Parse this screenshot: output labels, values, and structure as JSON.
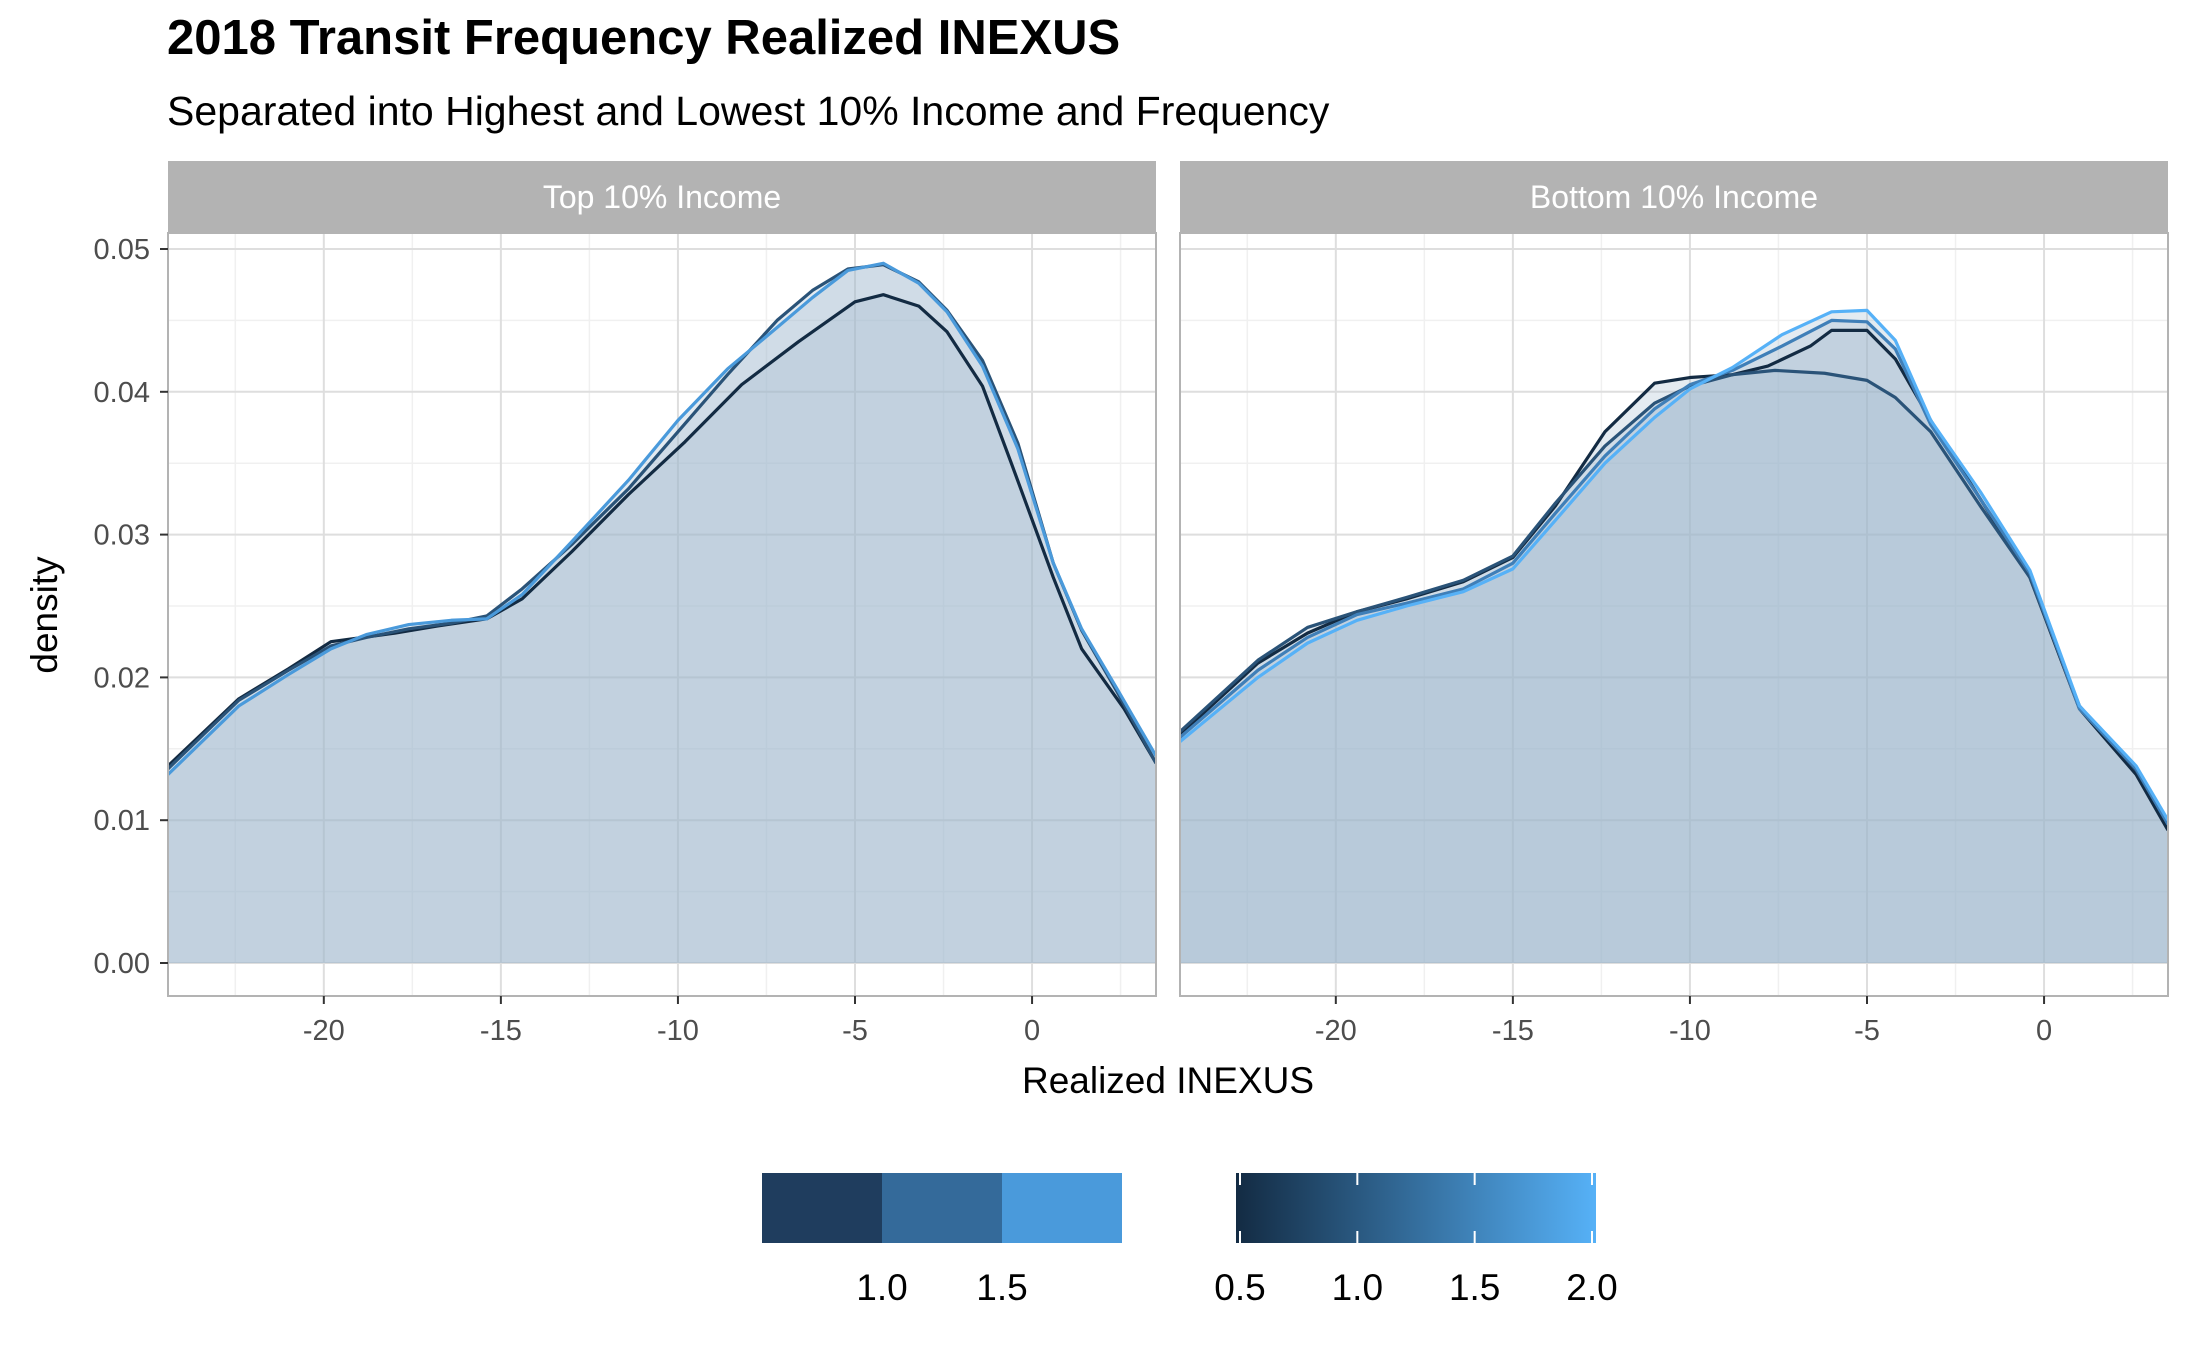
{
  "chart_data": {
    "type": "area",
    "title": "2018 Transit Frequency Realized INEXUS",
    "subtitle": "Separated into Highest and Lowest 10% Income and Frequency",
    "xlabel": "Realized INEXUS",
    "ylabel": "density",
    "xlim": [
      -24.4,
      3.5
    ],
    "ylim": [
      0,
      0.05
    ],
    "x_ticks": [
      -20,
      -15,
      -10,
      -5,
      0
    ],
    "x_tick_labels": [
      "-20",
      "-15",
      "-10",
      "-5",
      "0"
    ],
    "y_ticks": [
      0,
      0.01,
      0.02,
      0.03,
      0.04,
      0.05
    ],
    "y_tick_labels": [
      "0.00",
      "0.01",
      "0.02",
      "0.03",
      "0.04",
      "0.05"
    ],
    "grid": true,
    "fill_color": "#9fb7cc",
    "legend_position": "bottom",
    "legends": [
      {
        "kind": "binned",
        "colors": [
          "#1f3d5e",
          "#346a9a",
          "#4a9adb"
        ],
        "breaks": [
          "1.0",
          "1.5"
        ]
      },
      {
        "kind": "colorbar",
        "color_low": "#132b43",
        "color_high": "#56b1f7",
        "breaks": [
          "0.5",
          "1.0",
          "1.5",
          "2.0"
        ]
      }
    ],
    "panels": [
      {
        "strip": "Top 10% Income",
        "series": [
          {
            "color": "#132b43",
            "x": [
              -24.4,
              -22.4,
              -21,
              -19.8,
              -18,
              -16.8,
              -15.4,
              -14.4,
              -13,
              -11.4,
              -9.8,
              -8.2,
              -6.6,
              -5,
              -4.2,
              -3.2,
              -2.4,
              -1.4,
              -0.6,
              0.6,
              1.4,
              2.6,
              3.5
            ],
            "y": [
              0.0138,
              0.0185,
              0.0206,
              0.0225,
              0.0231,
              0.0236,
              0.0241,
              0.0255,
              0.0288,
              0.0328,
              0.0365,
              0.0405,
              0.0435,
              0.0463,
              0.0468,
              0.046,
              0.0442,
              0.0404,
              0.0351,
              0.027,
              0.022,
              0.0178,
              0.014
            ]
          },
          {
            "color": "#2a5378",
            "x": [
              -24.4,
              -22.4,
              -21,
              -19.8,
              -18.8,
              -17.6,
              -16.4,
              -15.4,
              -14.4,
              -13,
              -11.4,
              -10,
              -8.6,
              -7.2,
              -6.2,
              -5.2,
              -4.2,
              -3.2,
              -2.4,
              -1.4,
              -0.4,
              0.6,
              1.4,
              2.4,
              3.5
            ],
            "y": [
              0.0136,
              0.0184,
              0.0205,
              0.0222,
              0.0228,
              0.0234,
              0.0238,
              0.0243,
              0.0262,
              0.0293,
              0.0332,
              0.0372,
              0.0412,
              0.045,
              0.0471,
              0.0486,
              0.0489,
              0.0477,
              0.0457,
              0.0422,
              0.0364,
              0.028,
              0.0233,
              0.019,
              0.014
            ]
          },
          {
            "color": "#4a9adb",
            "x": [
              -24.4,
              -22.4,
              -21,
              -19.8,
              -18.8,
              -17.6,
              -16.4,
              -15.4,
              -14.4,
              -13,
              -11.4,
              -10,
              -8.6,
              -7.2,
              -6.2,
              -5.2,
              -4.2,
              -3.2,
              -2.4,
              -1.4,
              -0.4,
              0.6,
              1.4,
              2.4,
              3.5
            ],
            "y": [
              0.0132,
              0.018,
              0.0202,
              0.022,
              0.023,
              0.0237,
              0.024,
              0.0241,
              0.0258,
              0.0295,
              0.0338,
              0.038,
              0.0416,
              0.0445,
              0.0466,
              0.0485,
              0.049,
              0.0476,
              0.0456,
              0.0418,
              0.036,
              0.028,
              0.0234,
              0.0192,
              0.0145
            ]
          }
        ]
      },
      {
        "strip": "Bottom 10% Income",
        "series": [
          {
            "color": "#132b43",
            "x": [
              -24.4,
              -22.2,
              -20.8,
              -19.4,
              -18,
              -16.4,
              -15,
              -13.8,
              -12.4,
              -11,
              -10,
              -8.8,
              -7.8,
              -6.6,
              -6,
              -5,
              -4.2,
              -3.2,
              -1.8,
              -0.4,
              1,
              2.6,
              3.5
            ],
            "y": [
              0.016,
              0.021,
              0.0231,
              0.0246,
              0.0255,
              0.0267,
              0.0284,
              0.032,
              0.0372,
              0.0406,
              0.041,
              0.0412,
              0.0418,
              0.0432,
              0.0443,
              0.0443,
              0.0423,
              0.038,
              0.0325,
              0.027,
              0.0178,
              0.0132,
              0.0093
            ]
          },
          {
            "color": "#2a5378",
            "x": [
              -24.4,
              -22.2,
              -20.8,
              -19.4,
              -18,
              -16.4,
              -15,
              -13.8,
              -12.4,
              -11,
              -10,
              -8.8,
              -7.6,
              -6.2,
              -5,
              -4.2,
              -3.2,
              -1.8,
              -0.4,
              1,
              2.6,
              3.5
            ],
            "y": [
              0.0162,
              0.0212,
              0.0235,
              0.0246,
              0.0256,
              0.0268,
              0.0285,
              0.0322,
              0.0362,
              0.0392,
              0.0404,
              0.0412,
              0.0415,
              0.0413,
              0.0408,
              0.0396,
              0.0372,
              0.032,
              0.027,
              0.018,
              0.0135,
              0.0098
            ]
          },
          {
            "color": "#3f7fb8",
            "x": [
              -24.4,
              -22.2,
              -20.8,
              -19.4,
              -18,
              -16.4,
              -15,
              -13.8,
              -12.4,
              -11,
              -10,
              -8.8,
              -7.4,
              -6,
              -5,
              -4.2,
              -3.2,
              -1.8,
              -0.4,
              1,
              2.6,
              3.5
            ],
            "y": [
              0.0158,
              0.0205,
              0.0228,
              0.0244,
              0.0252,
              0.0262,
              0.028,
              0.0315,
              0.0355,
              0.0388,
              0.0405,
              0.0415,
              0.0432,
              0.045,
              0.0449,
              0.043,
              0.0377,
              0.0325,
              0.0273,
              0.0178,
              0.0136,
              0.0097
            ]
          },
          {
            "color": "#56b1f7",
            "x": [
              -24.4,
              -22.2,
              -20.8,
              -19.4,
              -18,
              -16.4,
              -15,
              -13.8,
              -12.4,
              -11,
              -10,
              -8.8,
              -7.4,
              -6,
              -5,
              -4.2,
              -3.2,
              -1.8,
              -0.4,
              1,
              2.6,
              3.5
            ],
            "y": [
              0.0155,
              0.02,
              0.0224,
              0.024,
              0.025,
              0.026,
              0.0276,
              0.031,
              0.035,
              0.0382,
              0.0402,
              0.0417,
              0.044,
              0.0456,
              0.0457,
              0.0436,
              0.038,
              0.033,
              0.0275,
              0.018,
              0.0138,
              0.01
            ]
          }
        ]
      }
    ]
  }
}
